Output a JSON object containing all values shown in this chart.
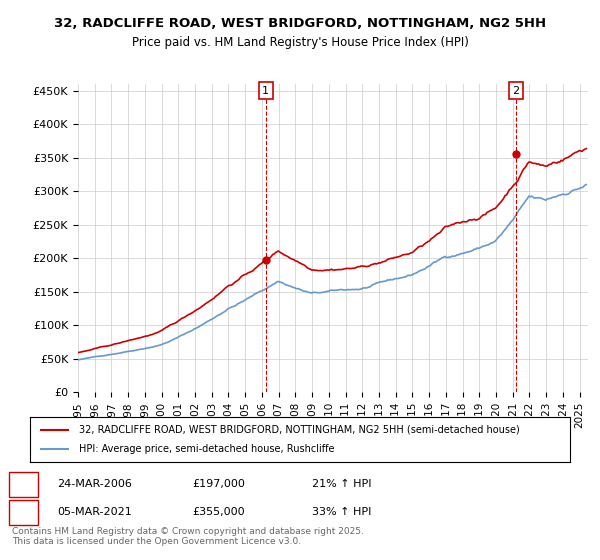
{
  "title": "32, RADCLIFFE ROAD, WEST BRIDGFORD, NOTTINGHAM, NG2 5HH",
  "subtitle": "Price paid vs. HM Land Registry's House Price Index (HPI)",
  "ylim": [
    0,
    460000
  ],
  "yticks": [
    0,
    50000,
    100000,
    150000,
    200000,
    250000,
    300000,
    350000,
    400000,
    450000
  ],
  "ytick_labels": [
    "£0",
    "£50K",
    "£100K",
    "£150K",
    "£200K",
    "£250K",
    "£300K",
    "£350K",
    "£400K",
    "£450K"
  ],
  "xlim_start": 1995.0,
  "xlim_end": 2025.5,
  "sale1_date": 2006.23,
  "sale1_price": 197000,
  "sale1_label": "1",
  "sale2_date": 2021.18,
  "sale2_price": 355000,
  "sale2_label": "2",
  "property_color": "#cc0000",
  "hpi_color": "#6699cc",
  "grid_color": "#cccccc",
  "background_color": "#ffffff",
  "legend_property": "32, RADCLIFFE ROAD, WEST BRIDGFORD, NOTTINGHAM, NG2 5HH (semi-detached house)",
  "legend_hpi": "HPI: Average price, semi-detached house, Rushcliffe",
  "annotation1": "1    24-MAR-2006    £197,000    21% ↑ HPI",
  "annotation2": "2    05-MAR-2021    £355,000    33% ↑ HPI",
  "footer": "Contains HM Land Registry data © Crown copyright and database right 2025.\nThis data is licensed under the Open Government Licence v3.0."
}
